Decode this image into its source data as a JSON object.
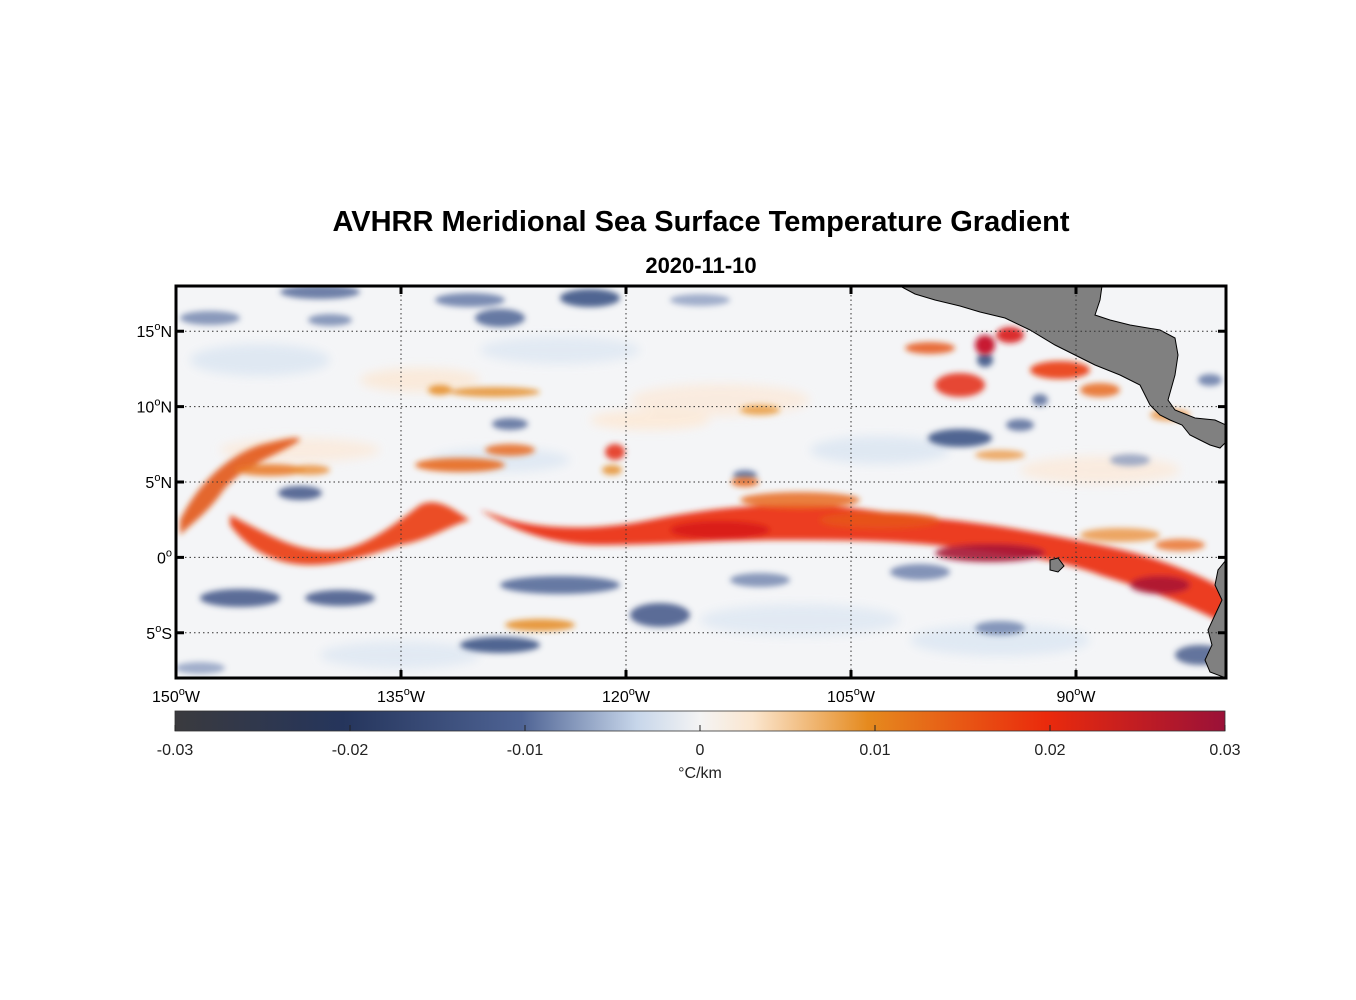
{
  "title": "AVHRR Meridional Sea Surface Temperature Gradient",
  "date": "2020-11-10",
  "map": {
    "lon_range": [
      -150,
      -80
    ],
    "lat_range": [
      -8,
      18
    ],
    "lon_ticks": [
      {
        "value": -150,
        "num": "150",
        "sup": "o",
        "hemi": "W"
      },
      {
        "value": -135,
        "num": "135",
        "sup": "o",
        "hemi": "W"
      },
      {
        "value": -120,
        "num": "120",
        "sup": "o",
        "hemi": "W"
      },
      {
        "value": -105,
        "num": "105",
        "sup": "o",
        "hemi": "W"
      },
      {
        "value": -90,
        "num": "90",
        "sup": "o",
        "hemi": "W"
      }
    ],
    "lat_ticks": [
      {
        "value": 15,
        "num": "15",
        "sup": "o",
        "hemi": "N"
      },
      {
        "value": 10,
        "num": "10",
        "sup": "o",
        "hemi": "N"
      },
      {
        "value": 5,
        "num": "5",
        "sup": "o",
        "hemi": "N"
      },
      {
        "value": 0,
        "num": "0",
        "sup": "o",
        "hemi": ""
      },
      {
        "value": -5,
        "num": "5",
        "sup": "o",
        "hemi": "S"
      }
    ],
    "grid": true,
    "land_color": "#808080"
  },
  "colorbar": {
    "min": -0.03,
    "max": 0.03,
    "ticks": [
      "-0.03",
      "-0.02",
      "-0.01",
      "0",
      "0.01",
      "0.02",
      "0.03"
    ],
    "tick_values": [
      -0.03,
      -0.02,
      -0.01,
      0,
      0.01,
      0.02,
      0.03
    ],
    "label": "°C/km",
    "colors": [
      "#3a3a3e",
      "#25355c",
      "#4e6394",
      "#d6e2f0",
      "#fbf3ea",
      "#e58a1e",
      "#ea2a0c",
      "#9a1138"
    ]
  }
}
